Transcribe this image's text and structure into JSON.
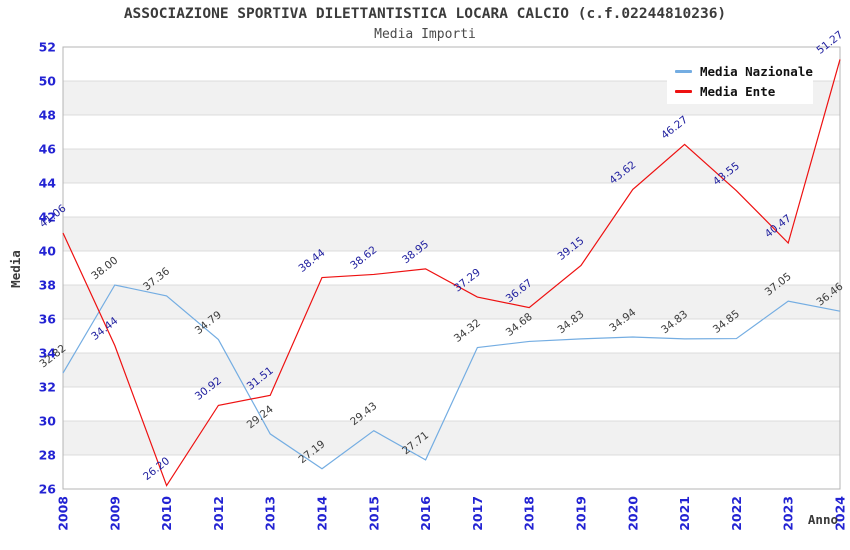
{
  "header": {
    "title": "ASSOCIAZIONE SPORTIVA DILETTANTISTICA LOCARA CALCIO (c.f.02244810236)",
    "subtitle": "Media Importi"
  },
  "legend": {
    "items": [
      {
        "label": "Media Nazionale",
        "color": "#74ade2"
      },
      {
        "label": "Media Ente",
        "color": "#ee1111"
      }
    ]
  },
  "chart_data": {
    "type": "line",
    "title": "ASSOCIAZIONE SPORTIVA DILETTANTISTICA LOCARA CALCIO (c.f.02244810236)",
    "subtitle": "Media Importi",
    "xlabel": "Anno",
    "ylabel": "Media",
    "categories": [
      "2008",
      "2009",
      "2010",
      "2012",
      "2013",
      "2014",
      "2015",
      "2016",
      "2017",
      "2018",
      "2019",
      "2020",
      "2021",
      "2022",
      "2023",
      "2024"
    ],
    "series": [
      {
        "name": "Media Nazionale",
        "color": "#74ade2",
        "label_color": "#3c3c3c",
        "values": [
          32.82,
          38.0,
          37.36,
          34.79,
          29.24,
          27.19,
          29.43,
          27.71,
          34.32,
          34.68,
          34.83,
          34.94,
          34.83,
          34.85,
          37.05,
          36.46
        ]
      },
      {
        "name": "Media Ente",
        "color": "#ee1111",
        "label_color": "#1e1e9e",
        "values": [
          41.06,
          34.44,
          26.2,
          30.92,
          31.51,
          38.44,
          38.62,
          38.95,
          37.29,
          36.67,
          39.15,
          43.62,
          46.27,
          43.55,
          40.47,
          51.27
        ]
      }
    ],
    "ylim": [
      26,
      52
    ],
    "y_ticks": [
      26,
      28,
      30,
      32,
      34,
      36,
      38,
      40,
      42,
      44,
      46,
      48,
      50,
      52
    ],
    "grid": true,
    "legend_position": "top-right",
    "band_color": "#f1f1f1",
    "grid_color": "#dcdcdc",
    "frame_color": "#b4b4b4",
    "axis_tick_color": "#2323d3"
  }
}
